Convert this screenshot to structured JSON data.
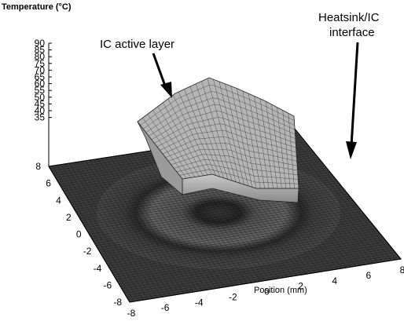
{
  "chart_data": {
    "type": "surface",
    "zlabel": "Temperature (°C)",
    "xlabel": "Position (mm)",
    "ylabel": "",
    "z_ticks": [
      "90",
      "85",
      "80",
      "75",
      "70",
      "65",
      "60",
      "55",
      "50",
      "45",
      "40",
      "35"
    ],
    "x_ticks": [
      "-8",
      "-6",
      "-4",
      "-2",
      "0",
      "2",
      "4",
      "6",
      "8"
    ],
    "y_ticks": [
      "8",
      "6",
      "4",
      "2",
      "0",
      "-2",
      "-4",
      "-6",
      "-8"
    ],
    "xlim": [
      -8,
      8
    ],
    "ylim": [
      -8,
      8
    ],
    "zlim": [
      35,
      90
    ],
    "surfaces": [
      {
        "name": "IC active layer",
        "z_range": [
          45,
          70
        ],
        "shape": "raised block with peaked edges"
      },
      {
        "name": "Heatsink/IC interface",
        "z_range": [
          35,
          36
        ],
        "shape": "flat plane with faint ring"
      }
    ],
    "annotations": [
      "IC active layer",
      "Heatsink/IC\ninterface"
    ]
  }
}
